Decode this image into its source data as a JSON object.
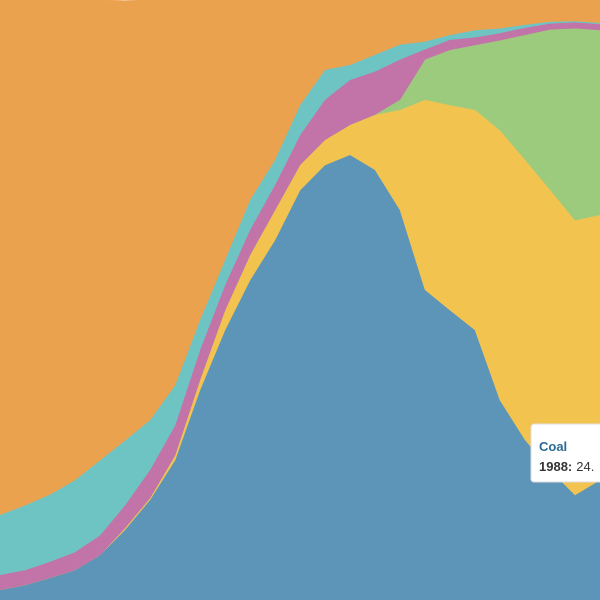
{
  "chart_data": {
    "type": "stacked-area",
    "ylim": [
      0,
      100
    ],
    "series": [
      {
        "color": "#5d95b8",
        "values": [
          1.7,
          2.5,
          3.7,
          5,
          7.5,
          11.7,
          16.7,
          23.3,
          35,
          45,
          53.3,
          60,
          68.3,
          72.5,
          74.2,
          71.7,
          65,
          51.7,
          48.3,
          45,
          33.3,
          26.7,
          21.7,
          17.5,
          20
        ]
      },
      {
        "color": "#f2c44f",
        "values": [
          0,
          0,
          0,
          0,
          0,
          0.3,
          0.3,
          0.8,
          1.7,
          3.3,
          4.2,
          5,
          4.2,
          4.2,
          5,
          9.2,
          16.7,
          31.7,
          34.2,
          36.7,
          45,
          46.7,
          46.7,
          45.8,
          44.2
        ]
      },
      {
        "color": "#9ccb7e",
        "values": [
          0,
          0,
          0,
          0,
          0,
          0,
          0,
          0,
          0,
          0,
          0,
          0,
          0,
          0,
          0,
          0,
          1.7,
          6.7,
          9.2,
          10.8,
          15,
          20.8,
          26.7,
          32,
          30.8
        ]
      },
      {
        "color": "#c274a8",
        "values": [
          2.5,
          2.5,
          2.7,
          3,
          3.3,
          3.8,
          4.7,
          5,
          5,
          4.2,
          4.2,
          4.2,
          5,
          6.7,
          7.5,
          7.2,
          6.7,
          1.7,
          1.7,
          1.3,
          1.2,
          1.2,
          1,
          1,
          1
        ]
      },
      {
        "color": "#6ec3c3",
        "values": [
          10,
          10.8,
          11.2,
          12,
          12.5,
          10.8,
          8.3,
          6.7,
          5,
          4.2,
          5,
          4.2,
          5,
          5,
          2.5,
          2.8,
          2.5,
          1.3,
          0.8,
          1.2,
          0.8,
          0.5,
          0.3,
          0.2,
          0.2
        ]
      },
      {
        "color": "#eba24f",
        "values": [
          85.8,
          84.2,
          82.5,
          80,
          76.7,
          73.3,
          70,
          64.2,
          53.3,
          43.3,
          33.3,
          26.7,
          17.5,
          11.7,
          10.8,
          9.2,
          7.5,
          7,
          5.8,
          5,
          4.7,
          4.2,
          3.7,
          3.5,
          3.8
        ]
      }
    ],
    "tooltip": {
      "title": "Coal",
      "label": "1988:",
      "value_text": "24."
    }
  }
}
